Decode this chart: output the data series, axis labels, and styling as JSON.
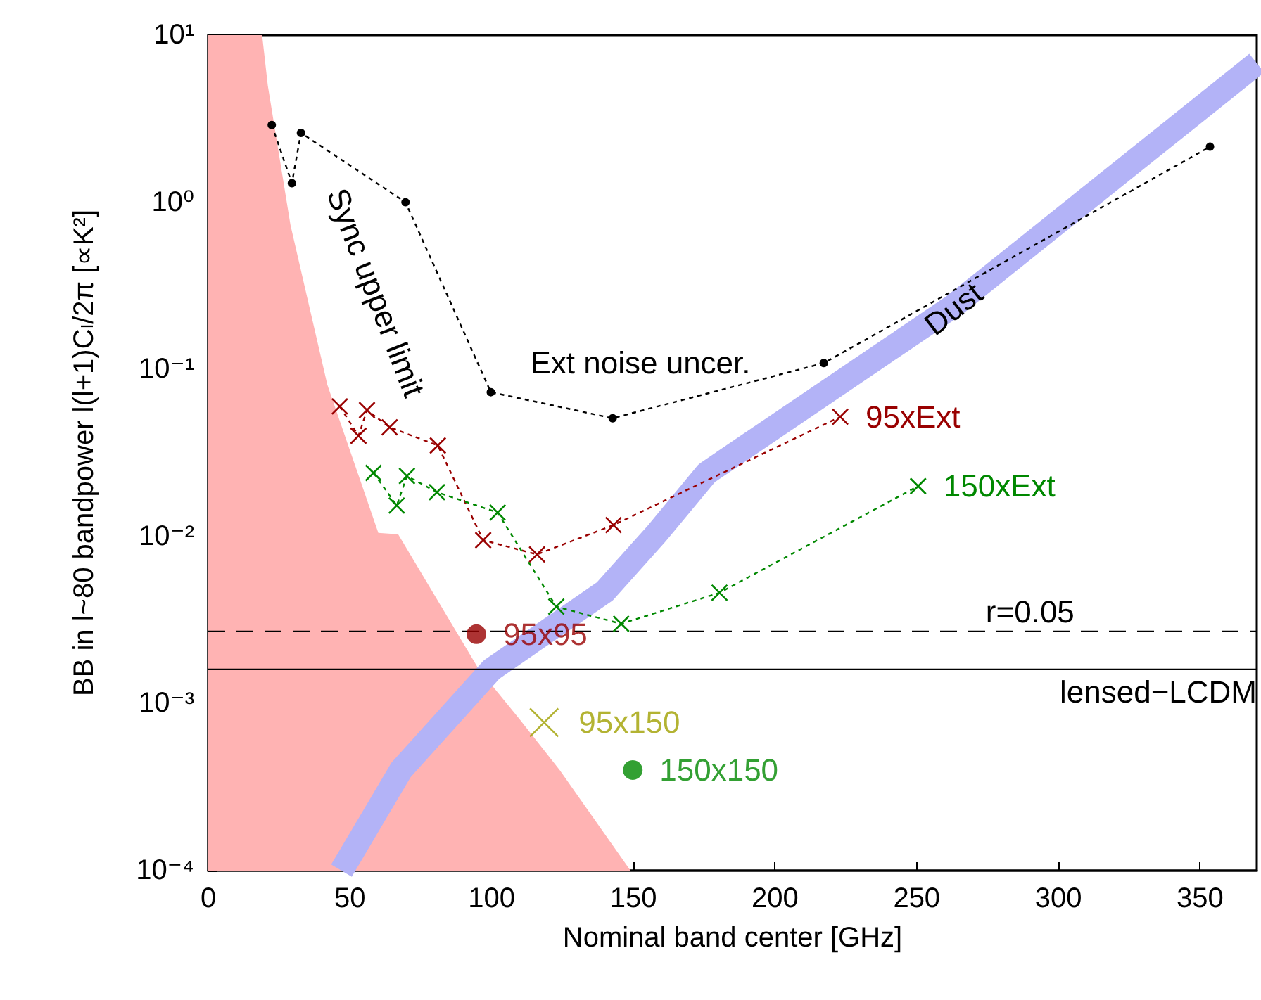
{
  "chart_data": {
    "type": "line",
    "xlabel": "Nominal band center [GHz]",
    "ylabel": "BB in l~80 bandpower l(l+1)Cₗ/2π [∝K²]",
    "xlim": [
      0,
      370
    ],
    "xticks": [
      0,
      50,
      100,
      150,
      200,
      250,
      300,
      350
    ],
    "ylim": [
      0.0001,
      10
    ],
    "yticks": [
      {
        "value": 0.0001,
        "label": "10⁻⁴"
      },
      {
        "value": 0.001,
        "label": "10⁻³"
      },
      {
        "value": 0.01,
        "label": "10⁻²"
      },
      {
        "value": 0.1,
        "label": "10⁻¹"
      },
      {
        "value": 1,
        "label": "10⁰"
      },
      {
        "value": 10,
        "label": "10¹"
      }
    ],
    "log": "y",
    "grid": false,
    "legend": false,
    "series": [
      {
        "type": "area",
        "color": "#ffb3b3",
        "marker": "none",
        "x": [
          0,
          19,
          21,
          29,
          42,
          60,
          67,
          80,
          95.5,
          110,
          124,
          149
        ],
        "values": [
          10,
          10,
          5,
          0.73,
          0.081,
          0.0105,
          0.0103,
          0.0044,
          0.0016,
          0.0008,
          0.0004,
          0.0001
        ]
      },
      {
        "color": "#b3b3f7",
        "marker": "none",
        "x": [
          47,
          68,
          100,
          140,
          158,
          176,
          263,
          370
        ],
        "values": [
          0.0001,
          0.0004,
          0.0016,
          0.0047,
          0.0103,
          0.024,
          0.24,
          6.8
        ]
      },
      {
        "color": "#000000",
        "marker": "circle",
        "line_style": "dotted",
        "x": [
          22.4,
          29.5,
          32.7,
          69.6,
          99.7,
          142.7,
          217.2,
          353.5
        ],
        "values": [
          2.9,
          1.3,
          2.6,
          1.0,
          0.073,
          0.051,
          0.109,
          2.15
        ]
      },
      {
        "name": "95xExt",
        "color": "#990000",
        "marker": "cross",
        "line_style": "dotted",
        "x": [
          46.4,
          53,
          56,
          64,
          81,
          97,
          116,
          143,
          223
        ],
        "values": [
          0.06,
          0.04,
          0.057,
          0.045,
          0.035,
          0.0095,
          0.0078,
          0.0117,
          0.052
        ]
      },
      {
        "name": "150xExt",
        "color": "#008800",
        "marker": "cross",
        "line_style": "dotted",
        "x": [
          58.3,
          66.5,
          70.1,
          80.7,
          102.1,
          122.8,
          145.7,
          180.4,
          250.5
        ],
        "values": [
          0.024,
          0.0153,
          0.023,
          0.0184,
          0.0139,
          0.0038,
          0.003,
          0.0046,
          0.02
        ]
      },
      {
        "name": "95x95",
        "type": "scatter",
        "color": "#990000",
        "marker": "circle",
        "x": [
          94.6
        ],
        "values": [
          0.0026
        ]
      },
      {
        "name": "95x150",
        "type": "scatter",
        "color": "#a0a000",
        "marker": "cross",
        "x": [
          118.5
        ],
        "values": [
          0.00077
        ]
      },
      {
        "name": "150x150",
        "type": "scatter",
        "color": "#008800",
        "marker": "circle",
        "x": [
          149.8
        ],
        "values": [
          0.0004
        ]
      }
    ],
    "ref_lines": [
      {
        "axis": "y",
        "value": 0.0027,
        "line_style": "dashed",
        "color": "#000000"
      },
      {
        "axis": "y",
        "value": 0.0016,
        "label": "lensed−LCDM",
        "line_style": "solid",
        "color": "#000000"
      }
    ],
    "annotations": [
      "Sync upper limit",
      {
        "text": "Dust",
        "x": 263,
        "y": 0.23
      },
      "Ext noise uncer.",
      {
        "text": "r=0.05",
        "x": 290,
        "y": 0.0027
      }
    ]
  }
}
